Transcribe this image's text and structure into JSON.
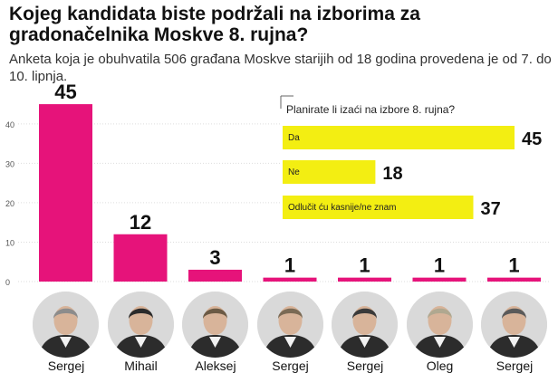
{
  "title": "Kojeg kandidata biste podržali na izborima za gradonačelnika Moskve 8. rujna?",
  "subtitle": "Anketa koja je obuhvatila 506 građana Moskve starijih od 18 godina provedena je od 7. do 10. lipnja.",
  "colors": {
    "main_bar": "#e6137a",
    "inset_bar": "#f3ee12",
    "grid": "#dddddd"
  },
  "chart_data": [
    {
      "type": "bar",
      "title": "Kojeg kandidata biste podržali na izborima za gradonačelnika Moskve 8. rujna?",
      "categories": [
        "Sergej",
        "Mihail",
        "Aleksej",
        "Sergej",
        "Sergej",
        "Oleg",
        "Sergej"
      ],
      "values": [
        45,
        12,
        3,
        1,
        1,
        1,
        1
      ],
      "ylim": [
        0,
        48
      ],
      "yticks": [
        0,
        10,
        20,
        30,
        40
      ],
      "grid": true
    },
    {
      "type": "bar",
      "orientation": "horizontal",
      "title": "Planirate li izaći na izbore 8. rujna?",
      "categories": [
        "Da",
        "Ne",
        "Odlučit ću kasnije/ne znam"
      ],
      "values": [
        45,
        18,
        37
      ]
    }
  ],
  "candidates": [
    {
      "name": "Sergej",
      "photo": "portrait"
    },
    {
      "name": "Mihail",
      "photo": "portrait"
    },
    {
      "name": "Aleksej",
      "photo": "portrait"
    },
    {
      "name": "Sergej",
      "photo": "portrait"
    },
    {
      "name": "Sergej",
      "photo": "portrait"
    },
    {
      "name": "Oleg",
      "photo": "portrait"
    },
    {
      "name": "Sergej",
      "photo": "portrait"
    }
  ]
}
